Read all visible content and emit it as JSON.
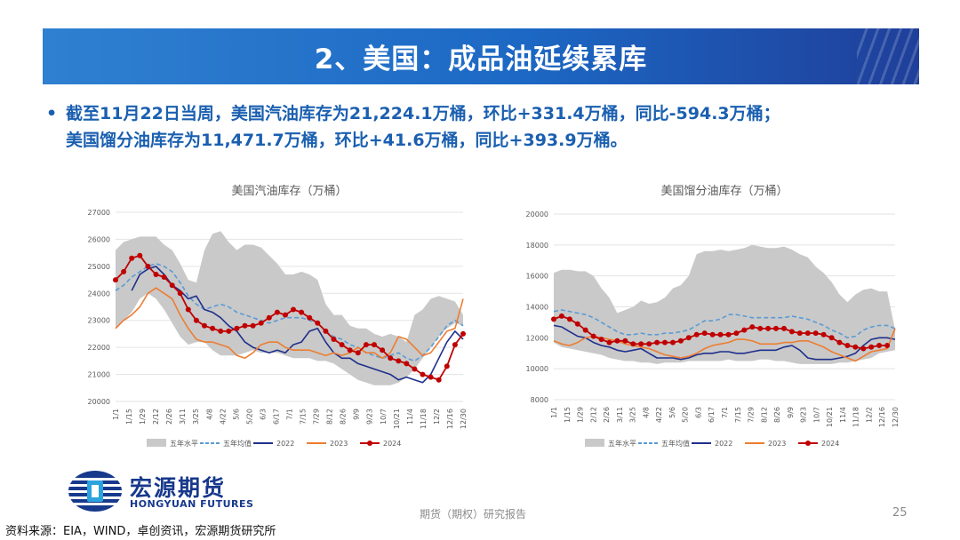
{
  "slide": {
    "title": "2、美国：成品油延续累库",
    "bullet_line1": "截至11月22日当周，美国汽油库存为21,224.1万桶，环比+331.4万桶，同比-594.3万桶；",
    "bullet_line2": "美国馏分油库存为11,471.7万桶，环比+41.6万桶，同比+393.9万桶。",
    "bullet_marker": "•"
  },
  "logo": {
    "cn": "宏源期货",
    "en": "HONGYUAN FUTURES",
    "icon": "hongyuan-logo-icon"
  },
  "footer": {
    "source": "资料来源：EIA，WIND，卓创资讯，宏源期货研究所",
    "center": "期货（期权）研究报告",
    "page": "25"
  },
  "colors": {
    "band": "#c9c9c9",
    "avg": "#5b9bd5",
    "y2022": "#1f2f8c",
    "y2023": "#ed7d31",
    "y2024": "#c00000",
    "title_bar": "#1c68c4",
    "bullet_text": "#1a5fb0"
  },
  "chart_data": [
    {
      "type": "line",
      "title": "美国汽油库存（万桶）",
      "xlabel": "",
      "ylabel": "",
      "ylim": [
        20000,
        27000
      ],
      "yticks": [
        20000,
        21000,
        22000,
        23000,
        24000,
        25000,
        26000,
        27000
      ],
      "x_tick_labels": [
        "1/1",
        "1/15",
        "1/29",
        "2/12",
        "2/26",
        "3/11",
        "3/25",
        "4/8",
        "4/22",
        "5/6",
        "5/20",
        "6/3",
        "6/17",
        "7/1",
        "7/15",
        "7/29",
        "8/12",
        "8/26",
        "9/9",
        "9/23",
        "10/7",
        "10/21",
        "11/4",
        "11/18",
        "12/2",
        "12/16",
        "12/30"
      ],
      "legend": [
        "五年水平",
        "五年均值",
        "2022",
        "2023",
        "2024"
      ],
      "legend_position": "bottom",
      "series": [
        {
          "name": "五年水平上限",
          "values": [
            25600,
            25900,
            26000,
            26100,
            26100,
            26100,
            25800,
            25600,
            25100,
            24500,
            24400,
            25600,
            26200,
            26300,
            25900,
            25600,
            25800,
            25800,
            25700,
            25400,
            25100,
            24700,
            24700,
            24800,
            24700,
            24500,
            23600,
            23200,
            23200,
            22800,
            22700,
            22700,
            22500,
            22400,
            22500,
            22400,
            22200,
            23200,
            23400,
            23800,
            23900,
            23800,
            23700,
            23200
          ]
        },
        {
          "name": "五年水平下限",
          "values": [
            22700,
            23000,
            23300,
            23800,
            24000,
            23800,
            23400,
            22900,
            22400,
            22100,
            22200,
            22200,
            21900,
            21700,
            21700,
            21700,
            21800,
            21900,
            21800,
            21800,
            21800,
            21700,
            21600,
            21600,
            21600,
            21500,
            21500,
            21400,
            21200,
            21000,
            20800,
            20700,
            20600,
            20600,
            20600,
            20700,
            20900,
            21200,
            21600,
            22000,
            22400,
            22700,
            22900,
            22800
          ]
        },
        {
          "name": "五年均值",
          "values": [
            24100,
            24300,
            24600,
            24800,
            25000,
            25100,
            25000,
            24800,
            24400,
            23900,
            23600,
            23400,
            23500,
            23600,
            23500,
            23300,
            23200,
            23100,
            23000,
            22900,
            23000,
            23100,
            23100,
            23100,
            23000,
            22900,
            22600,
            22400,
            22300,
            22100,
            22000,
            21800,
            21700,
            21600,
            21700,
            21800,
            21600,
            21500,
            21700,
            22000,
            22400,
            22800,
            23000,
            22800
          ]
        },
        {
          "name": "2022",
          "values": [
            null,
            null,
            24100,
            24700,
            24900,
            25000,
            24700,
            24300,
            24100,
            23800,
            23900,
            23400,
            23300,
            23100,
            22800,
            22600,
            22200,
            22000,
            21900,
            21800,
            21900,
            21800,
            22100,
            22200,
            22600,
            22700,
            22200,
            21800,
            21600,
            21600,
            21400,
            21300,
            21200,
            21100,
            21000,
            20800,
            20900,
            20800,
            20700,
            21000,
            21600,
            22200,
            22600,
            22300
          ]
        },
        {
          "name": "2023",
          "values": [
            22700,
            23000,
            23200,
            23500,
            24000,
            24200,
            24000,
            23800,
            23200,
            22700,
            22300,
            22200,
            22200,
            22100,
            22000,
            21700,
            21600,
            21800,
            22100,
            22200,
            22200,
            22000,
            21900,
            21900,
            21900,
            21800,
            21700,
            21800,
            21700,
            21800,
            22000,
            21800,
            21800,
            21600,
            21800,
            22400,
            22300,
            22000,
            21700,
            21800,
            22200,
            22600,
            22700,
            23800
          ]
        },
        {
          "name": "2024",
          "values": [
            24500,
            24800,
            25300,
            25400,
            25000,
            24700,
            24600,
            24300,
            24000,
            23400,
            23000,
            22800,
            22700,
            22600,
            22600,
            22700,
            22800,
            22800,
            22900,
            23100,
            23300,
            23200,
            23400,
            23300,
            23100,
            22900,
            22600,
            22300,
            22100,
            21900,
            21800,
            22100,
            22100,
            21900,
            21600,
            21500,
            21400,
            21200,
            21000,
            20900,
            20800,
            21300,
            22100,
            22500
          ]
        }
      ]
    },
    {
      "type": "line",
      "title": "美国馏分油库存（万桶）",
      "xlabel": "",
      "ylabel": "",
      "ylim": [
        8000,
        20000
      ],
      "yticks": [
        8000,
        10000,
        12000,
        14000,
        16000,
        18000,
        20000
      ],
      "x_tick_labels": [
        "1/1",
        "1/15",
        "1/29",
        "2/12",
        "2/26",
        "3/11",
        "3/25",
        "4/8",
        "4/22",
        "5/6",
        "5/20",
        "6/3",
        "6/17",
        "7/1",
        "7/15",
        "7/29",
        "8/12",
        "8/26",
        "9/9",
        "9/23",
        "10/7",
        "10/21",
        "11/4",
        "11/18",
        "12/2",
        "12/16",
        "12/30"
      ],
      "legend": [
        "五年水平",
        "五年均值",
        "2022",
        "2023",
        "2024"
      ],
      "legend_position": "bottom",
      "series": [
        {
          "name": "五年水平上限",
          "values": [
            16200,
            16400,
            16400,
            16300,
            16300,
            16000,
            15200,
            14600,
            13600,
            13800,
            14000,
            14400,
            14200,
            14300,
            14600,
            15200,
            15400,
            16000,
            17400,
            17600,
            17600,
            17700,
            17600,
            17700,
            17800,
            18000,
            17900,
            17800,
            17800,
            17900,
            17700,
            17400,
            17200,
            16600,
            16200,
            15600,
            14800,
            14300,
            14800,
            15100,
            15200,
            15000,
            15000,
            12500
          ]
        },
        {
          "name": "五年水平下限",
          "values": [
            11700,
            11400,
            11300,
            11200,
            11100,
            11000,
            10900,
            10700,
            10600,
            10500,
            10500,
            10400,
            10400,
            10300,
            10400,
            10400,
            10400,
            10500,
            10500,
            10500,
            10500,
            10500,
            10600,
            10500,
            10500,
            10500,
            10600,
            10600,
            10500,
            10500,
            10400,
            10300,
            10300,
            10300,
            10300,
            10300,
            10400,
            10400,
            10500,
            10600,
            10700,
            11000,
            11100,
            11200
          ]
        },
        {
          "name": "五年均值",
          "values": [
            13700,
            13800,
            13700,
            13600,
            13500,
            13300,
            13000,
            12700,
            12400,
            12200,
            12200,
            12300,
            12200,
            12200,
            12300,
            12300,
            12400,
            12500,
            12800,
            13100,
            13100,
            13200,
            13500,
            13500,
            13400,
            13300,
            13300,
            13300,
            13300,
            13300,
            13400,
            13300,
            13200,
            13000,
            12800,
            12500,
            12300,
            12000,
            12100,
            12500,
            12700,
            12800,
            12800,
            12600
          ]
        },
        {
          "name": "2022",
          "values": [
            12800,
            12700,
            12400,
            12100,
            12000,
            11700,
            11500,
            11400,
            11200,
            11100,
            11200,
            11300,
            11000,
            10700,
            10700,
            10700,
            10600,
            10700,
            10900,
            11000,
            11000,
            11100,
            11100,
            11000,
            11000,
            11100,
            11200,
            11200,
            11200,
            11400,
            11500,
            11200,
            10700,
            10600,
            10600,
            10600,
            10700,
            10800,
            11000,
            11500,
            11900,
            12000,
            12000,
            11900
          ]
        },
        {
          "name": "2023",
          "values": [
            11800,
            11600,
            11500,
            11700,
            12000,
            12100,
            12000,
            11900,
            11800,
            11600,
            11500,
            11400,
            11300,
            11100,
            10900,
            10800,
            10700,
            10800,
            11000,
            11300,
            11500,
            11600,
            11700,
            11900,
            11900,
            11800,
            11600,
            11600,
            11600,
            11700,
            11700,
            11800,
            11800,
            11600,
            11400,
            11100,
            10900,
            10700,
            10500,
            10800,
            11100,
            11200,
            11300,
            12600
          ]
        },
        {
          "name": "2024",
          "values": [
            13200,
            13400,
            13200,
            12900,
            12500,
            12100,
            11900,
            11700,
            11800,
            11800,
            11600,
            11600,
            11600,
            11700,
            11700,
            11700,
            11800,
            12000,
            12200,
            12300,
            12200,
            12200,
            12200,
            12300,
            12500,
            12700,
            12600,
            12600,
            12600,
            12600,
            12400,
            12300,
            12300,
            12300,
            12200,
            12000,
            11700,
            11500,
            11400,
            11300,
            11400,
            11500,
            11500,
            null
          ]
        }
      ]
    }
  ]
}
